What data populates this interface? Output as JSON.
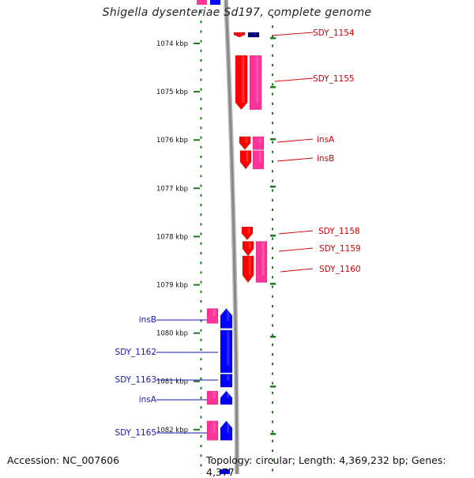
{
  "title": "Shigella dysenteriae Sd197, complete genome",
  "footer": {
    "accession": "Accession: NC_007606",
    "topology": "Topology: circular; Length: 4,369,232 bp; Genes: 4,377"
  },
  "ruler": {
    "unit": "kbp",
    "ticks": [
      {
        "kbp": 1074,
        "label": "1074 kbp"
      },
      {
        "kbp": 1075,
        "label": "1075 kbp"
      },
      {
        "kbp": 1076,
        "label": "1076 kbp"
      },
      {
        "kbp": 1077,
        "label": "1077 kbp"
      },
      {
        "kbp": 1078,
        "label": "1078 kbp"
      },
      {
        "kbp": 1079,
        "label": "1079 kbp"
      },
      {
        "kbp": 1080,
        "label": "1080 kbp"
      },
      {
        "kbp": 1081,
        "label": "1081 kbp"
      },
      {
        "kbp": 1082,
        "label": "1082 kbp"
      }
    ]
  },
  "colors": {
    "forward_label": "#cc0000",
    "reverse_label": "#1a1aa8",
    "gene_red": "#ff0000",
    "gene_pink": "#ff3399",
    "gene_blue": "#0000ff",
    "gene_navy": "#00007a",
    "tick_green": "#1f7a1f",
    "backbone": "#888888"
  },
  "genes": {
    "forward": [
      {
        "label": "SDY_1154",
        "start_kbp": 1073.77,
        "end_kbp": 1073.87,
        "color": "red",
        "dir": "down"
      },
      {
        "label": "",
        "start_kbp": 1073.77,
        "end_kbp": 1073.87,
        "color": "navy",
        "dir": "none"
      },
      {
        "label": "SDY_1155",
        "start_kbp": 1074.25,
        "end_kbp": 1075.37,
        "color": "red",
        "dir": "down"
      },
      {
        "label": "",
        "start_kbp": 1074.25,
        "end_kbp": 1075.37,
        "color": "pink",
        "dir": "none"
      },
      {
        "label": "insA",
        "start_kbp": 1075.93,
        "end_kbp": 1076.2,
        "color": "red",
        "dir": "down"
      },
      {
        "label": "insB",
        "start_kbp": 1076.22,
        "end_kbp": 1076.6,
        "color": "red",
        "dir": "down"
      },
      {
        "label": "SDY_1158",
        "start_kbp": 1077.8,
        "end_kbp": 1078.07,
        "color": "red",
        "dir": "down"
      },
      {
        "label": "SDY_1159",
        "start_kbp": 1078.1,
        "end_kbp": 1078.4,
        "color": "red",
        "dir": "down"
      },
      {
        "label": "SDY_1160",
        "start_kbp": 1078.4,
        "end_kbp": 1078.95,
        "color": "red",
        "dir": "down"
      }
    ],
    "reverse": [
      {
        "label": "insB",
        "start_kbp": 1079.49,
        "end_kbp": 1079.9,
        "color": "blue",
        "dir": "up"
      },
      {
        "label": "SDY_1162",
        "start_kbp": 1079.94,
        "end_kbp": 1080.82,
        "color": "blue",
        "dir": "none"
      },
      {
        "label": "SDY_1163",
        "start_kbp": 1080.85,
        "end_kbp": 1081.12,
        "color": "blue",
        "dir": "none"
      },
      {
        "label": "insA",
        "start_kbp": 1081.2,
        "end_kbp": 1081.48,
        "color": "blue",
        "dir": "up"
      },
      {
        "label": "SDY_1165",
        "start_kbp": 1081.82,
        "end_kbp": 1082.22,
        "color": "blue",
        "dir": "up"
      }
    ]
  }
}
